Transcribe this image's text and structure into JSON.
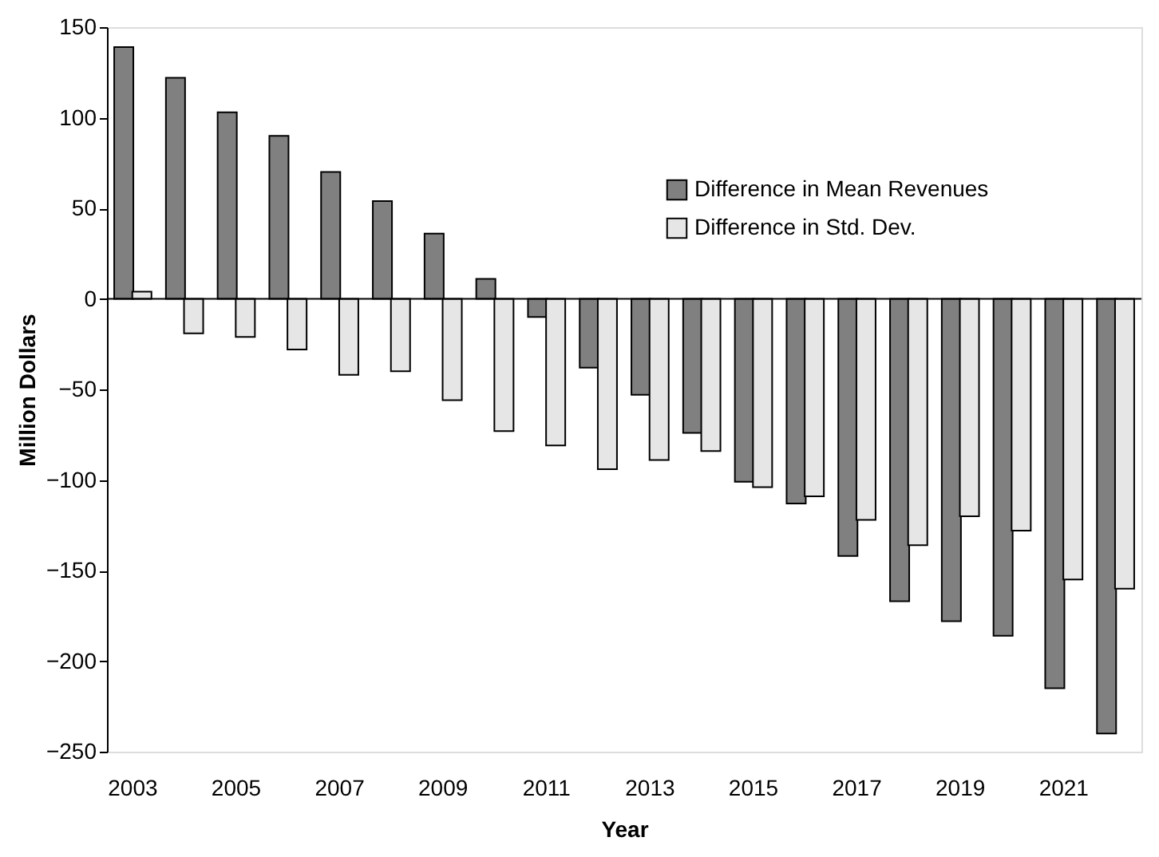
{
  "chart_data": {
    "type": "bar",
    "xlabel": "Year",
    "ylabel": "Million Dollars",
    "categories": [
      "2003",
      null,
      "2005",
      null,
      "2007",
      null,
      "2009",
      null,
      "2011",
      null,
      "2013",
      null,
      "2015",
      null,
      "2017",
      null,
      "2019",
      null,
      "2021",
      null
    ],
    "series": [
      {
        "name": "Difference in Mean Revenues",
        "color": "#808080",
        "values": [
          139,
          122,
          103,
          90,
          70,
          54,
          36,
          11,
          -10,
          -38,
          -53,
          -74,
          -101,
          -113,
          -142,
          -167,
          -178,
          -186,
          -215,
          -240
        ]
      },
      {
        "name": "Difference in Std. Dev.",
        "color": "#e6e6e6",
        "values": [
          4,
          -19,
          -21,
          -28,
          -42,
          -40,
          -56,
          -73,
          -81,
          -94,
          -89,
          -84,
          -104,
          -109,
          -122,
          -136,
          -120,
          -128,
          -155,
          -160
        ]
      }
    ],
    "ylim": [
      -250,
      150
    ],
    "yticks": [
      -250,
      -200,
      -150,
      -100,
      -50,
      0,
      50,
      100,
      150
    ],
    "ref_lines": [
      {
        "axis": "y",
        "value": 0,
        "color": "#000000"
      }
    ],
    "grid": false,
    "legend": "top right"
  }
}
